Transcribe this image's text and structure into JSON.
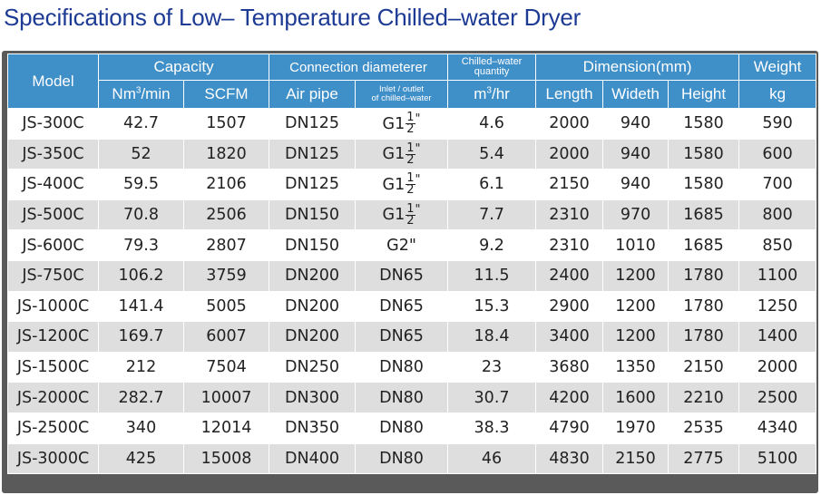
{
  "title": "Specifications of Low– Temperature Chilled–water Dryer",
  "header": {
    "model": "Model",
    "capacity": "Capacity",
    "connection": "Connection diameterer",
    "chilled_line1": "Chilled–water",
    "chilled_line2": "quantity",
    "dimension": "Dimension(mm)",
    "weight": "Weight",
    "nm3min_base": "Nm",
    "nm3min_sup": "3",
    "nm3min_tail": "/min",
    "scfm": "SCFM",
    "air_pipe": "Air pipe",
    "inlet_line1": "Inlet / outlet",
    "inlet_line2": "of chilled–water",
    "m3hr_base": "m",
    "m3hr_sup": "3",
    "m3hr_tail": "/hr",
    "length": "Length",
    "width": "Wideth",
    "height": "Height",
    "kg": "kg"
  },
  "rows": [
    {
      "model": "JS-300C",
      "nm3": "42.7",
      "scfm": "1507",
      "air": "DN125",
      "inlet": {
        "type": "frac",
        "base": "G1",
        "num": "1",
        "den": "2",
        "mark": "\""
      },
      "qty": "4.6",
      "len": "2000",
      "wid": "940",
      "hgt": "1580",
      "wt": "590"
    },
    {
      "model": "JS-350C",
      "nm3": "52",
      "scfm": "1820",
      "air": "DN125",
      "inlet": {
        "type": "frac",
        "base": "G1",
        "num": "1",
        "den": "2",
        "mark": "\""
      },
      "qty": "5.4",
      "len": "2000",
      "wid": "940",
      "hgt": "1580",
      "wt": "600"
    },
    {
      "model": "JS-400C",
      "nm3": "59.5",
      "scfm": "2106",
      "air": "DN125",
      "inlet": {
        "type": "frac",
        "base": "G1",
        "num": "1",
        "den": "2",
        "mark": "\""
      },
      "qty": "6.1",
      "len": "2150",
      "wid": "940",
      "hgt": "1580",
      "wt": "700"
    },
    {
      "model": "JS-500C",
      "nm3": "70.8",
      "scfm": "2506",
      "air": "DN150",
      "inlet": {
        "type": "frac",
        "base": "G1",
        "num": "1",
        "den": "2",
        "mark": "\""
      },
      "qty": "7.7",
      "len": "2310",
      "wid": "970",
      "hgt": "1685",
      "wt": "800"
    },
    {
      "model": "JS-600C",
      "nm3": "79.3",
      "scfm": "2807",
      "air": "DN150",
      "inlet": {
        "type": "text",
        "text": "G2\""
      },
      "qty": "9.2",
      "len": "2310",
      "wid": "1010",
      "hgt": "1685",
      "wt": "850"
    },
    {
      "model": "JS-750C",
      "nm3": "106.2",
      "scfm": "3759",
      "air": "DN200",
      "inlet": {
        "type": "text",
        "text": "DN65"
      },
      "qty": "11.5",
      "len": "2400",
      "wid": "1200",
      "hgt": "1780",
      "wt": "1100"
    },
    {
      "model": "JS-1000C",
      "nm3": "141.4",
      "scfm": "5005",
      "air": "DN200",
      "inlet": {
        "type": "text",
        "text": "DN65"
      },
      "qty": "15.3",
      "len": "2900",
      "wid": "1200",
      "hgt": "1780",
      "wt": "1250"
    },
    {
      "model": "JS-1200C",
      "nm3": "169.7",
      "scfm": "6007",
      "air": "DN200",
      "inlet": {
        "type": "text",
        "text": "DN65"
      },
      "qty": "18.4",
      "len": "3400",
      "wid": "1200",
      "hgt": "1780",
      "wt": "1400"
    },
    {
      "model": "JS-1500C",
      "nm3": "212",
      "scfm": "7504",
      "air": "DN250",
      "inlet": {
        "type": "text",
        "text": "DN80"
      },
      "qty": "23",
      "len": "3680",
      "wid": "1350",
      "hgt": "2150",
      "wt": "2000"
    },
    {
      "model": "JS-2000C",
      "nm3": "282.7",
      "scfm": "10007",
      "air": "DN300",
      "inlet": {
        "type": "text",
        "text": "DN80"
      },
      "qty": "30.7",
      "len": "4200",
      "wid": "1600",
      "hgt": "2210",
      "wt": "2500"
    },
    {
      "model": "JS-2500C",
      "nm3": "340",
      "scfm": "12014",
      "air": "DN350",
      "inlet": {
        "type": "text",
        "text": "DN80"
      },
      "qty": "38.3",
      "len": "4790",
      "wid": "1970",
      "hgt": "2535",
      "wt": "4340"
    },
    {
      "model": "JS-3000C",
      "nm3": "425",
      "scfm": "15008",
      "air": "DN400",
      "inlet": {
        "type": "text",
        "text": "DN80"
      },
      "qty": "46",
      "len": "4830",
      "wid": "2150",
      "hgt": "2775",
      "wt": "5100"
    }
  ],
  "colors": {
    "title": "#1d3a94",
    "header_bg": "#3f8fc9",
    "frame": "#5a5a5a",
    "stripe": "#dedede"
  }
}
